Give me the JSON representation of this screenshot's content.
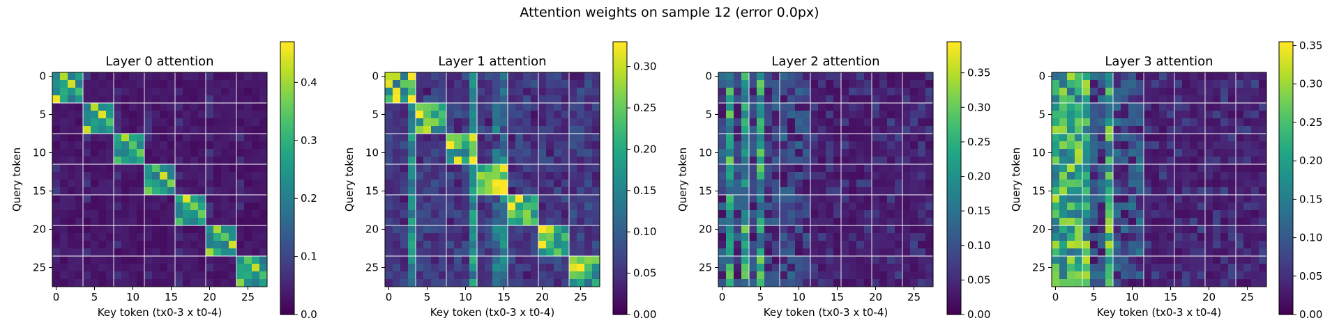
{
  "figure_title": "Attention weights on sample 12 (error 0.0px)",
  "chart_data": [
    {
      "type": "heatmap",
      "title": "Layer 0 attention",
      "xlabel": "Key token (tx0-3 x t0-4)",
      "ylabel": "Query token",
      "x_ticks": [
        0,
        5,
        10,
        15,
        20,
        25
      ],
      "y_ticks": [
        0,
        5,
        10,
        15,
        20,
        25
      ],
      "xlim": [
        -0.5,
        27.5
      ],
      "ylim": [
        27.5,
        -0.5
      ],
      "grid": true,
      "grid_every": 4,
      "colormap": "viridis",
      "colorbar": {
        "min": 0.0,
        "max": 0.47,
        "ticks": [
          0.0,
          0.1,
          0.2,
          0.3,
          0.4
        ],
        "tick_labels": [
          "0.0",
          "0.1",
          "0.2",
          "0.3",
          "0.4"
        ]
      },
      "pattern": "block_diagonal",
      "peak": 0.46
    },
    {
      "type": "heatmap",
      "title": "Layer 1 attention",
      "xlabel": "Key token (tx0-3 x t0-4)",
      "ylabel": "Query token",
      "x_ticks": [
        0,
        5,
        10,
        15,
        20,
        25
      ],
      "y_ticks": [
        0,
        5,
        10,
        15,
        20,
        25
      ],
      "xlim": [
        -0.5,
        27.5
      ],
      "ylim": [
        27.5,
        -0.5
      ],
      "grid": true,
      "grid_every": 4,
      "colormap": "viridis",
      "colorbar": {
        "min": 0.0,
        "max": 0.33,
        "ticks": [
          0.0,
          0.05,
          0.1,
          0.15,
          0.2,
          0.25,
          0.3
        ],
        "tick_labels": [
          "0.00",
          "0.05",
          "0.10",
          "0.15",
          "0.20",
          "0.25",
          "0.30"
        ]
      },
      "pattern": "diagonal_plus_columns",
      "peak": 0.33
    },
    {
      "type": "heatmap",
      "title": "Layer 2 attention",
      "xlabel": "Key token (tx0-3 x t0-4)",
      "ylabel": "Query token",
      "x_ticks": [
        0,
        5,
        10,
        15,
        20,
        25
      ],
      "y_ticks": [
        0,
        5,
        10,
        15,
        20,
        25
      ],
      "xlim": [
        -0.5,
        27.5
      ],
      "ylim": [
        27.5,
        -0.5
      ],
      "grid": true,
      "grid_every": 4,
      "colormap": "viridis",
      "colorbar": {
        "min": 0.0,
        "max": 0.395,
        "ticks": [
          0.0,
          0.05,
          0.1,
          0.15,
          0.2,
          0.25,
          0.3,
          0.35
        ],
        "tick_labels": [
          "0.00",
          "0.05",
          "0.10",
          "0.15",
          "0.20",
          "0.25",
          "0.30",
          "0.35"
        ]
      },
      "pattern": "column_stripes",
      "strong_key_columns": [
        1,
        3,
        5
      ],
      "peak": 0.39
    },
    {
      "type": "heatmap",
      "title": "Layer 3 attention",
      "xlabel": "Key token (tx0-3 x t0-4)",
      "ylabel": "Query token",
      "x_ticks": [
        0,
        5,
        10,
        15,
        20,
        25
      ],
      "y_ticks": [
        0,
        5,
        10,
        15,
        20,
        25
      ],
      "xlim": [
        -0.5,
        27.5
      ],
      "ylim": [
        27.5,
        -0.5
      ],
      "grid": true,
      "grid_every": 4,
      "colormap": "viridis",
      "colorbar": {
        "min": 0.0,
        "max": 0.355,
        "ticks": [
          0.0,
          0.05,
          0.1,
          0.15,
          0.2,
          0.25,
          0.3,
          0.35
        ],
        "tick_labels": [
          "0.00",
          "0.05",
          "0.10",
          "0.15",
          "0.20",
          "0.25",
          "0.30",
          "0.35"
        ]
      },
      "pattern": "column_stripes",
      "strong_key_columns": [
        0,
        1,
        2,
        3,
        4,
        7
      ],
      "peak": 0.35
    }
  ]
}
